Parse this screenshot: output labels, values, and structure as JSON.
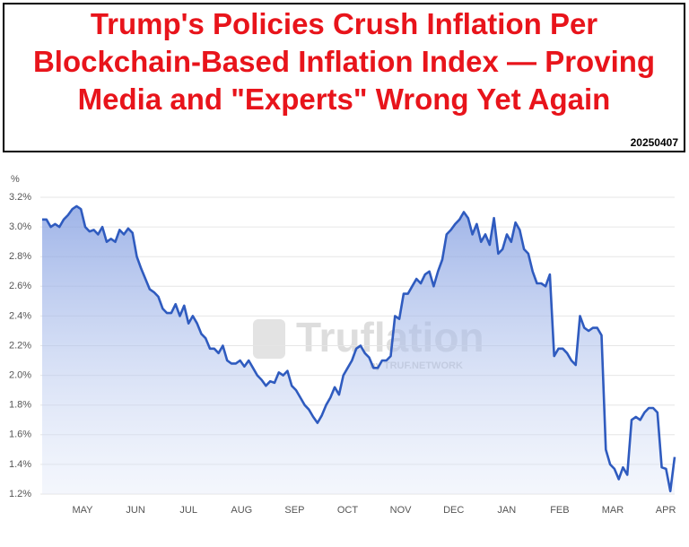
{
  "chart_data": {
    "type": "line",
    "title_lines": [
      "Trump's Policies Crush Inflation Per",
      "Blockchain-Based Inflation Index — Proving",
      "Media and \"Experts\" Wrong Yet Again"
    ],
    "date_stamp": "20250407",
    "y_unit": "%",
    "watermark": {
      "brand": "Truflation",
      "sub": "by TRUF.NETWORK"
    },
    "x_labels": [
      "MAY",
      "JUN",
      "JUL",
      "AUG",
      "SEP",
      "OCT",
      "NOV",
      "DEC",
      "JAN",
      "FEB",
      "MAR",
      "APR"
    ],
    "ylim": [
      1.2,
      3.2
    ],
    "yticks": [
      {
        "value": 1.2,
        "label": "1.2%"
      },
      {
        "value": 1.4,
        "label": "1.4%"
      },
      {
        "value": 1.6,
        "label": "1.6%"
      },
      {
        "value": 1.8,
        "label": "1.8%"
      },
      {
        "value": 2.0,
        "label": "2.0%"
      },
      {
        "value": 2.2,
        "label": "2.2%"
      },
      {
        "value": 2.4,
        "label": "2.4%"
      },
      {
        "value": 2.6,
        "label": "2.6%"
      },
      {
        "value": 2.8,
        "label": "2.8%"
      },
      {
        "value": 3.0,
        "label": "3.0%"
      },
      {
        "value": 3.2,
        "label": "3.2%"
      }
    ],
    "grid": true,
    "series": [
      {
        "color": "#2f5bbf",
        "values": [
          3.05,
          3.05,
          3.0,
          3.02,
          3.0,
          3.05,
          3.08,
          3.12,
          3.14,
          3.12,
          3.0,
          2.97,
          2.98,
          2.95,
          3.0,
          2.9,
          2.92,
          2.9,
          2.98,
          2.95,
          2.99,
          2.96,
          2.8,
          2.72,
          2.65,
          2.58,
          2.56,
          2.53,
          2.45,
          2.42,
          2.42,
          2.48,
          2.4,
          2.47,
          2.35,
          2.4,
          2.35,
          2.28,
          2.25,
          2.18,
          2.18,
          2.15,
          2.2,
          2.1,
          2.08,
          2.08,
          2.1,
          2.06,
          2.1,
          2.05,
          2.0,
          1.97,
          1.93,
          1.96,
          1.95,
          2.02,
          2.0,
          2.03,
          1.93,
          1.9,
          1.85,
          1.8,
          1.77,
          1.72,
          1.68,
          1.73,
          1.8,
          1.85,
          1.92,
          1.87,
          2.0,
          2.05,
          2.1,
          2.18,
          2.2,
          2.15,
          2.12,
          2.05,
          2.05,
          2.1,
          2.1,
          2.13,
          2.4,
          2.38,
          2.55,
          2.55,
          2.6,
          2.65,
          2.62,
          2.68,
          2.7,
          2.6,
          2.7,
          2.78,
          2.95,
          2.98,
          3.02,
          3.05,
          3.1,
          3.06,
          2.95,
          3.02,
          2.9,
          2.95,
          2.88,
          3.06,
          2.82,
          2.85,
          2.95,
          2.9,
          3.03,
          2.98,
          2.85,
          2.82,
          2.7,
          2.62,
          2.62,
          2.6,
          2.68,
          2.13,
          2.18,
          2.18,
          2.15,
          2.1,
          2.07,
          2.4,
          2.32,
          2.3,
          2.32,
          2.32,
          2.27,
          1.5,
          1.4,
          1.37,
          1.3,
          1.38,
          1.33,
          1.7,
          1.72,
          1.7,
          1.75,
          1.78,
          1.78,
          1.75,
          1.38,
          1.37,
          1.22,
          1.45
        ]
      }
    ]
  }
}
